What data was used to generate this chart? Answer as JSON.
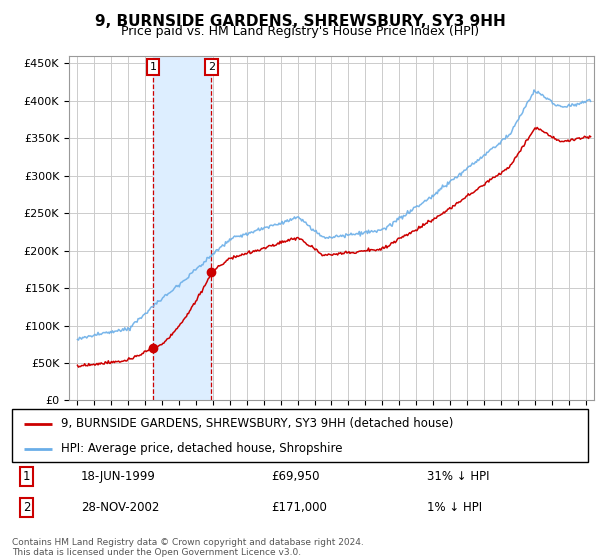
{
  "title": "9, BURNSIDE GARDENS, SHREWSBURY, SY3 9HH",
  "subtitle": "Price paid vs. HM Land Registry's House Price Index (HPI)",
  "footer": "Contains HM Land Registry data © Crown copyright and database right 2024.\nThis data is licensed under the Open Government Licence v3.0.",
  "legend_line1": "9, BURNSIDE GARDENS, SHREWSBURY, SY3 9HH (detached house)",
  "legend_line2": "HPI: Average price, detached house, Shropshire",
  "sale1_date": "18-JUN-1999",
  "sale1_price": 69950,
  "sale1_label": "31% ↓ HPI",
  "sale2_date": "28-NOV-2002",
  "sale2_price": 171000,
  "sale2_label": "1% ↓ HPI",
  "sale1_x": 1999.46,
  "sale2_x": 2002.91,
  "ylim_min": 0,
  "ylim_max": 460000,
  "xlim_min": 1994.5,
  "xlim_max": 2025.5,
  "hpi_color": "#6aaee8",
  "price_color": "#CC0000",
  "bg_color": "#FFFFFF",
  "plot_bg_color": "#FFFFFF",
  "grid_color": "#CCCCCC",
  "shade_color": "#ddeeff",
  "marker_box_color": "#CC0000"
}
